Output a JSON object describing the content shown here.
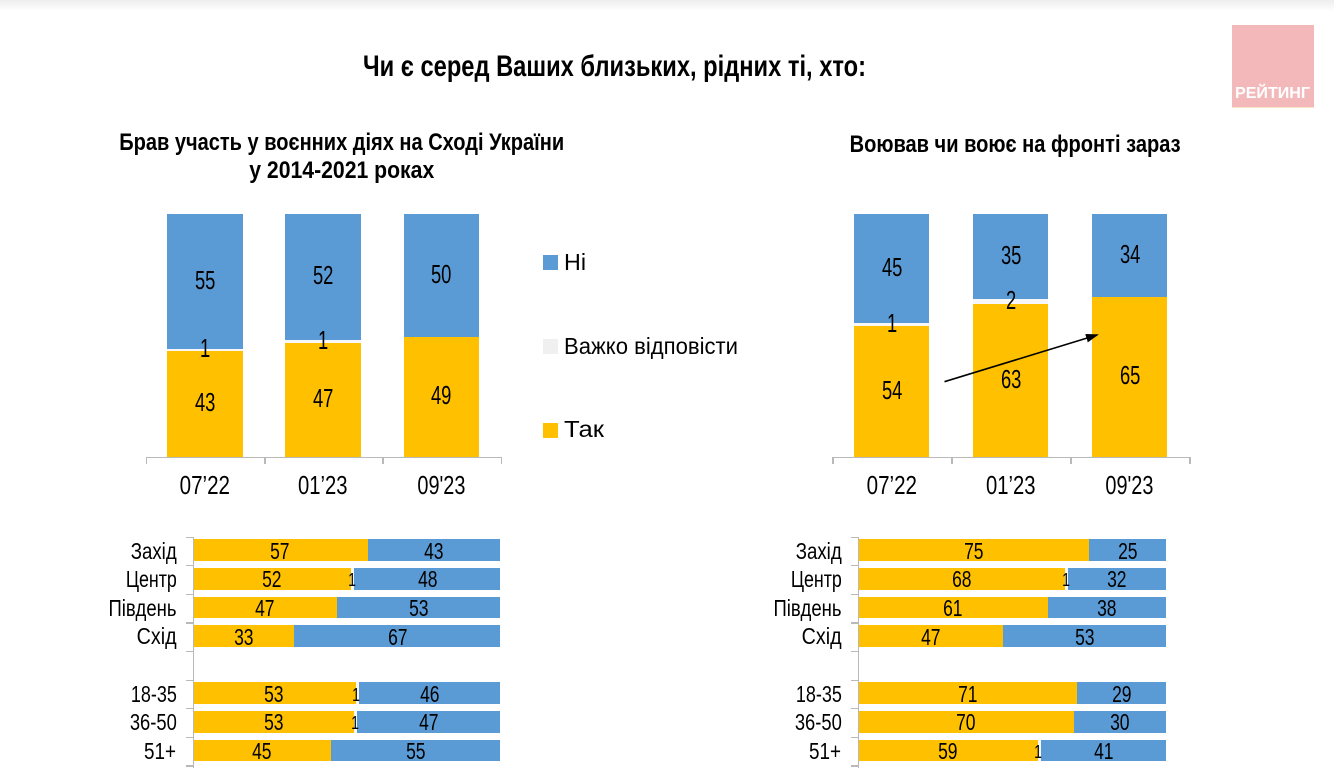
{
  "page": {
    "title": "Чи є серед Ваших близьких, рідних ті, хто:"
  },
  "logo": {
    "text": "РЕЙТИНГ",
    "bg_color": "#f2b8ba",
    "text_color": "#ffffff"
  },
  "colors": {
    "yes": "#ffc000",
    "dk": "#f7f7f7",
    "no": "#5b9bd5",
    "axis": "#b9b9b9",
    "text": "#000000"
  },
  "legend": {
    "items": [
      {
        "label": "Ні",
        "color": "#5b9bd5"
      },
      {
        "label": "Важко відповісти",
        "color": "#f0f0f0"
      },
      {
        "label": "Так",
        "color": "#ffc000"
      }
    ]
  },
  "chart_data": [
    {
      "id": "q1-trend",
      "type": "bar",
      "stacked": true,
      "title": "Брав участь у воєнних діях на Сході України у 2014-2021 роках",
      "title_lines": [
        "Брав участь у воєнних діях на Сході України",
        "у 2014-2021 роках"
      ],
      "categories": [
        "07’22",
        "01’23",
        "09'23"
      ],
      "series": [
        {
          "name": "Так",
          "values": [
            43,
            47,
            49
          ]
        },
        {
          "name": "Важко відповісти",
          "values": [
            1,
            1,
            0
          ]
        },
        {
          "name": "Ні",
          "values": [
            55,
            52,
            50
          ]
        }
      ],
      "legend_position": "right",
      "grid": false
    },
    {
      "id": "q2-trend",
      "type": "bar",
      "stacked": true,
      "title": "Воював чи воює на фронті зараз",
      "title_lines": [
        "Воював чи воює на фронті зараз"
      ],
      "categories": [
        "07’22",
        "01’23",
        "09'23"
      ],
      "series": [
        {
          "name": "Так",
          "values": [
            54,
            63,
            65
          ]
        },
        {
          "name": "Важко відповісти",
          "values": [
            1,
            2,
            0
          ]
        },
        {
          "name": "Ні",
          "values": [
            45,
            35,
            34
          ]
        }
      ],
      "annotation": "arrow-up-right",
      "grid": false
    },
    {
      "id": "q1-groups",
      "type": "bar-horizontal",
      "stacked": true,
      "categories": [
        "Захід",
        "Центр",
        "Південь",
        "Схід",
        "",
        "18-35",
        "36-50",
        "51+"
      ],
      "series": [
        {
          "name": "Так",
          "values": [
            57,
            52,
            47,
            33,
            null,
            53,
            53,
            45
          ]
        },
        {
          "name": "Важко відповісти",
          "values": [
            0,
            1,
            0,
            0,
            null,
            1,
            1,
            0
          ]
        },
        {
          "name": "Ні",
          "values": [
            43,
            48,
            53,
            67,
            null,
            46,
            47,
            55
          ]
        }
      ],
      "grid": false
    },
    {
      "id": "q2-groups",
      "type": "bar-horizontal",
      "stacked": true,
      "categories": [
        "Захід",
        "Центр",
        "Південь",
        "Схід",
        "",
        "18-35",
        "36-50",
        "51+"
      ],
      "series": [
        {
          "name": "Так",
          "values": [
            75,
            68,
            61,
            47,
            null,
            71,
            70,
            59
          ]
        },
        {
          "name": "Важко відповісти",
          "values": [
            0,
            1,
            0,
            0,
            null,
            0,
            0,
            1
          ]
        },
        {
          "name": "Ні",
          "values": [
            25,
            32,
            38,
            53,
            null,
            29,
            30,
            41
          ]
        }
      ],
      "grid": false
    }
  ]
}
